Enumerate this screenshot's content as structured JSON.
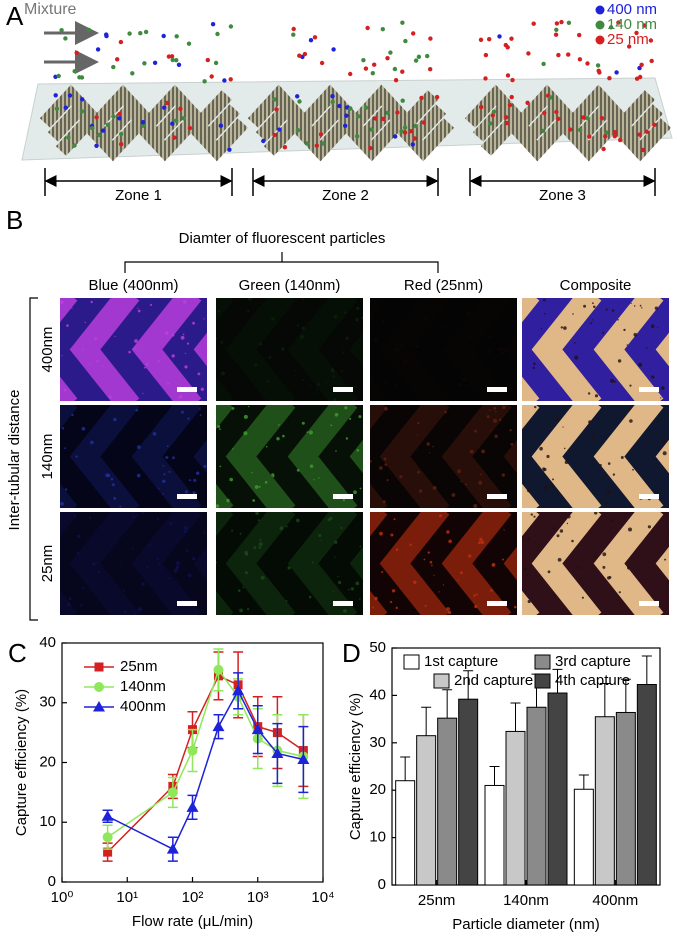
{
  "panel_a": {
    "label": "A",
    "inlet": "Mixture",
    "legend": [
      {
        "name": "400 nm",
        "color": "#1e22d8"
      },
      {
        "name": "140 nm",
        "color": "#3f8a3f"
      },
      {
        "name": "25 nm",
        "color": "#d42020"
      }
    ],
    "zones": [
      "Zone 1",
      "Zone 2",
      "Zone 3"
    ]
  },
  "panel_b": {
    "label": "B",
    "header": "Diamter of fluorescent particles",
    "columns": [
      "Blue (400nm)",
      "Green (140nm)",
      "Red (25nm)",
      "Composite"
    ],
    "row_axis": "Inter-tubular distance",
    "rows": [
      "400nm",
      "140nm",
      "25nm"
    ]
  },
  "chart_data": [
    {
      "type": "line",
      "label": "C",
      "x_label": "Flow rate (μL/min)",
      "y_label": "Capture efficiency (%)",
      "log_x": true,
      "x": [
        5,
        50,
        100,
        250,
        500,
        1000,
        2000,
        5000
      ],
      "xlim": [
        1,
        10000
      ],
      "xticks": [
        {
          "value": 1,
          "label": "10⁰"
        },
        {
          "value": 10,
          "label": "10¹"
        },
        {
          "value": 100,
          "label": "10²"
        },
        {
          "value": 1000,
          "label": "10³"
        },
        {
          "value": 10000,
          "label": "10⁴"
        }
      ],
      "ylim": [
        0,
        40
      ],
      "yticks": [
        0,
        10,
        20,
        30,
        40
      ],
      "legend": "upper left",
      "series": [
        {
          "name": "25nm",
          "color": "#d42020",
          "marker": "square",
          "values": [
            5,
            16,
            25.5,
            34.5,
            33,
            26,
            25,
            22
          ],
          "errors": [
            1.5,
            2,
            3,
            4,
            5.5,
            5,
            6,
            6
          ]
        },
        {
          "name": "140nm",
          "color": "#8fe85a",
          "marker": "circle",
          "values": [
            7.5,
            15,
            22,
            35.5,
            31,
            24,
            22,
            21
          ],
          "errors": [
            2,
            2.5,
            3.5,
            3.5,
            3,
            5,
            6,
            7
          ]
        },
        {
          "name": "400nm",
          "color": "#1e22d8",
          "marker": "triangle",
          "values": [
            11,
            5.5,
            12.5,
            26,
            32,
            25.5,
            21.5,
            20.5
          ],
          "errors": [
            1,
            2,
            2,
            2,
            3,
            4,
            5,
            5.5
          ]
        }
      ]
    },
    {
      "type": "bar",
      "label": "D",
      "x_label": "Particle diameter (nm)",
      "y_label": "Capture efficiency (%)",
      "categories": [
        "25nm",
        "140nm",
        "400nm"
      ],
      "ylim": [
        0,
        50
      ],
      "yticks": [
        0,
        10,
        20,
        30,
        40,
        50
      ],
      "legend": "top",
      "series": [
        {
          "name": "1st capture",
          "color": "#ffffff",
          "values": [
            22,
            21,
            20.2
          ],
          "errors": [
            5,
            4,
            3
          ]
        },
        {
          "name": "2nd capture",
          "color": "#c8c8c8",
          "values": [
            31.5,
            32.4,
            35.5
          ],
          "errors": [
            6,
            6,
            7
          ]
        },
        {
          "name": "3rd capture",
          "color": "#8a8a8a",
          "values": [
            35.2,
            37.5,
            36.4
          ],
          "errors": [
            6,
            7,
            7
          ]
        },
        {
          "name": "4th capture",
          "color": "#444444",
          "values": [
            39.2,
            40.5,
            42.3
          ],
          "errors": [
            6,
            5,
            6
          ]
        }
      ]
    }
  ]
}
